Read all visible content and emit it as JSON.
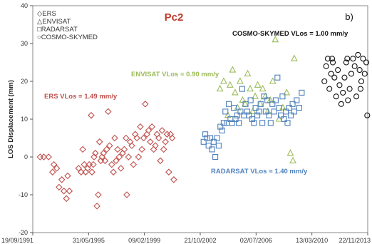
{
  "chart_data": {
    "type": "scatter",
    "title": "Pc2",
    "panel_label": "b)",
    "ylabel": "LOS Displacement (mm)",
    "xlabel": "",
    "ylim": [
      -20,
      40
    ],
    "yticks": [
      -20,
      -10,
      0,
      10,
      20,
      30,
      40
    ],
    "xlim": [
      "1991-09-19",
      "2013-11-22"
    ],
    "xticks": [
      {
        "date": "1991-09-19",
        "label": "19/09/1991"
      },
      {
        "date": "1995-05-31",
        "label": "31/05/1995"
      },
      {
        "date": "1999-02-09",
        "label": "09/02/1999"
      },
      {
        "date": "2002-10-21",
        "label": "21/10/2002"
      },
      {
        "date": "2006-07-02",
        "label": "02/07/2006"
      },
      {
        "date": "2010-03-13",
        "label": "13/03/2010"
      },
      {
        "date": "2013-11-22",
        "label": "22/11/2013"
      }
    ],
    "grid": false,
    "legend_position": "top-left",
    "series": [
      {
        "name": "ERS",
        "marker": "diamond",
        "color": "#c0504d",
        "points": [
          [
            "1992-03-15",
            0
          ],
          [
            "1992-06-10",
            0
          ],
          [
            "1992-10-05",
            0
          ],
          [
            "1993-01-10",
            -4
          ],
          [
            "1993-02-10",
            -2
          ],
          [
            "1993-04-20",
            -3
          ],
          [
            "1993-06-15",
            -8
          ],
          [
            "1993-08-20",
            -6
          ],
          [
            "1993-10-10",
            -9
          ],
          [
            "1993-12-10",
            -11
          ],
          [
            "1994-01-10",
            -5
          ],
          [
            "1994-02-20",
            -9
          ],
          [
            "1994-10-01",
            -3
          ],
          [
            "1994-12-01",
            -4
          ],
          [
            "1995-01-10",
            2
          ],
          [
            "1995-02-15",
            -2
          ],
          [
            "1995-03-20",
            -4
          ],
          [
            "1995-05-10",
            -3
          ],
          [
            "1995-06-15",
            -2
          ],
          [
            "1995-08-01",
            11
          ],
          [
            "1995-08-20",
            -4
          ],
          [
            "1995-09-20",
            -2
          ],
          [
            "1995-10-10",
            0
          ],
          [
            "1995-11-10",
            1
          ],
          [
            "1995-12-20",
            -13
          ],
          [
            "1996-01-20",
            -10
          ],
          [
            "1996-02-20",
            4
          ],
          [
            "1996-03-20",
            -1
          ],
          [
            "1996-04-20",
            0
          ],
          [
            "1996-05-25",
            1
          ],
          [
            "1996-07-01",
            -1
          ],
          [
            "1996-08-10",
            2
          ],
          [
            "1996-09-15",
            12
          ],
          [
            "1996-10-20",
            3
          ],
          [
            "1996-12-10",
            -2
          ],
          [
            "1997-01-20",
            -4
          ],
          [
            "1997-02-20",
            5
          ],
          [
            "1997-03-25",
            -1
          ],
          [
            "1997-05-01",
            2
          ],
          [
            "1997-06-10",
            0
          ],
          [
            "1997-07-20",
            -3
          ],
          [
            "1997-09-01",
            1
          ],
          [
            "1997-10-10",
            2
          ],
          [
            "1997-11-20",
            5
          ],
          [
            "1997-12-10",
            -10
          ],
          [
            "1998-01-20",
            0
          ],
          [
            "1998-03-01",
            4
          ],
          [
            "1998-04-10",
            3
          ],
          [
            "1998-05-20",
            -2
          ],
          [
            "1998-07-01",
            6
          ],
          [
            "1998-08-10",
            5
          ],
          [
            "1998-09-20",
            0
          ],
          [
            "1998-11-01",
            8
          ],
          [
            "1998-12-10",
            2
          ],
          [
            "1999-01-20",
            5
          ],
          [
            "1999-03-01",
            14
          ],
          [
            "1999-04-10",
            6
          ],
          [
            "1999-05-20",
            7
          ],
          [
            "1999-07-01",
            4
          ],
          [
            "1999-08-10",
            8
          ],
          [
            "1999-09-20",
            2
          ],
          [
            "1999-11-01",
            3
          ],
          [
            "1999-12-10",
            6
          ],
          [
            "2000-01-20",
            5
          ],
          [
            "2000-03-01",
            -1
          ],
          [
            "2000-04-10",
            7
          ],
          [
            "2000-05-20",
            2
          ],
          [
            "2000-07-01",
            4
          ],
          [
            "2000-08-10",
            6
          ],
          [
            "2000-09-20",
            -4
          ],
          [
            "2000-11-01",
            6
          ],
          [
            "2000-12-10",
            5
          ],
          [
            "2001-01-20",
            -6
          ]
        ]
      },
      {
        "name": "ENVISAT",
        "marker": "triangle",
        "color": "#9bbb59",
        "points": [
          [
            "2004-02-10",
            18
          ],
          [
            "2004-05-10",
            20
          ],
          [
            "2004-08-20",
            11
          ],
          [
            "2004-10-10",
            19
          ],
          [
            "2004-12-10",
            23
          ],
          [
            "2005-02-10",
            17
          ],
          [
            "2005-04-10",
            13
          ],
          [
            "2005-06-10",
            20
          ],
          [
            "2005-08-10",
            15
          ],
          [
            "2005-10-10",
            14
          ],
          [
            "2005-12-10",
            22
          ],
          [
            "2006-02-10",
            18
          ],
          [
            "2006-04-10",
            12
          ],
          [
            "2006-06-10",
            16
          ],
          [
            "2006-08-10",
            19
          ],
          [
            "2006-10-10",
            14
          ],
          [
            "2006-12-10",
            18
          ],
          [
            "2007-02-10",
            16
          ],
          [
            "2007-04-10",
            12
          ],
          [
            "2007-06-10",
            15
          ],
          [
            "2007-08-10",
            20
          ],
          [
            "2007-10-10",
            31
          ],
          [
            "2008-01-10",
            10
          ],
          [
            "2008-04-10",
            13
          ],
          [
            "2008-07-10",
            17
          ],
          [
            "2008-10-10",
            1
          ],
          [
            "2008-12-10",
            -1
          ],
          [
            "2009-01-10",
            26
          ]
        ]
      },
      {
        "name": "RADARSAT",
        "marker": "square",
        "color": "#4f81bd",
        "points": [
          [
            "2003-01-10",
            4
          ],
          [
            "2003-02-20",
            6
          ],
          [
            "2003-04-01",
            5
          ],
          [
            "2003-05-10",
            3
          ],
          [
            "2003-06-20",
            5
          ],
          [
            "2003-08-01",
            2
          ],
          [
            "2003-09-10",
            4
          ],
          [
            "2003-10-20",
            0
          ],
          [
            "2003-12-01",
            5
          ],
          [
            "2004-01-10",
            3
          ],
          [
            "2004-02-20",
            8
          ],
          [
            "2004-04-01",
            7
          ],
          [
            "2004-05-10",
            9
          ],
          [
            "2004-06-20",
            12
          ],
          [
            "2004-08-01",
            9
          ],
          [
            "2004-09-10",
            14
          ],
          [
            "2004-10-20",
            10
          ],
          [
            "2004-12-01",
            9
          ],
          [
            "2005-01-10",
            13
          ],
          [
            "2005-02-20",
            10
          ],
          [
            "2005-04-01",
            11
          ],
          [
            "2005-05-10",
            9
          ],
          [
            "2005-06-20",
            12
          ],
          [
            "2005-08-01",
            18
          ],
          [
            "2005-09-10",
            11
          ],
          [
            "2005-10-20",
            14
          ],
          [
            "2005-12-01",
            12
          ],
          [
            "2006-01-10",
            11
          ],
          [
            "2006-02-20",
            15
          ],
          [
            "2006-04-01",
            10
          ],
          [
            "2006-05-10",
            9
          ],
          [
            "2006-06-20",
            13
          ],
          [
            "2006-08-01",
            11
          ],
          [
            "2006-09-10",
            12
          ],
          [
            "2006-10-20",
            14
          ],
          [
            "2006-12-01",
            9
          ],
          [
            "2007-01-10",
            16
          ],
          [
            "2007-02-20",
            12
          ],
          [
            "2007-04-01",
            15
          ],
          [
            "2007-05-10",
            11
          ],
          [
            "2007-06-20",
            9
          ],
          [
            "2007-08-01",
            14
          ],
          [
            "2007-09-10",
            12
          ],
          [
            "2007-10-20",
            15
          ],
          [
            "2007-12-01",
            21
          ],
          [
            "2008-01-10",
            13
          ],
          [
            "2008-02-20",
            11
          ],
          [
            "2008-04-01",
            16
          ],
          [
            "2008-05-10",
            10
          ],
          [
            "2008-06-20",
            12
          ],
          [
            "2008-08-01",
            9
          ],
          [
            "2008-09-10",
            13
          ],
          [
            "2008-10-20",
            11
          ],
          [
            "2008-12-01",
            14
          ],
          [
            "2009-01-10",
            12
          ],
          [
            "2009-03-10",
            15
          ],
          [
            "2009-05-10",
            13
          ],
          [
            "2009-07-10",
            17
          ]
        ]
      },
      {
        "name": "COSMO-SKYMED",
        "marker": "circle",
        "color": "#111111",
        "points": [
          [
            "2011-01-10",
            20
          ],
          [
            "2011-02-20",
            24
          ],
          [
            "2011-04-01",
            26
          ],
          [
            "2011-05-10",
            18
          ],
          [
            "2011-06-20",
            22
          ],
          [
            "2011-08-01",
            25
          ],
          [
            "2011-09-10",
            21
          ],
          [
            "2011-10-20",
            16
          ],
          [
            "2011-12-01",
            23
          ],
          [
            "2012-01-10",
            19
          ],
          [
            "2012-02-20",
            14
          ],
          [
            "2012-04-01",
            17
          ],
          [
            "2012-05-10",
            21
          ],
          [
            "2012-06-20",
            25
          ],
          [
            "2012-08-01",
            15
          ],
          [
            "2012-09-10",
            18
          ],
          [
            "2012-10-20",
            22
          ],
          [
            "2012-12-01",
            26
          ],
          [
            "2013-01-10",
            24
          ],
          [
            "2013-02-20",
            16
          ],
          [
            "2013-04-01",
            27
          ],
          [
            "2013-05-10",
            23
          ],
          [
            "2013-06-20",
            20
          ],
          [
            "2013-08-01",
            26
          ],
          [
            "2013-09-10",
            22
          ],
          [
            "2013-10-20",
            25
          ],
          [
            "2013-11-10",
            11
          ],
          [
            "2013-06-01",
            18
          ],
          [
            "2012-07-15",
            26
          ],
          [
            "2011-07-15",
            26
          ]
        ]
      }
    ],
    "legend": [
      {
        "symbol": "◇",
        "label": "ERS"
      },
      {
        "symbol": "△",
        "label": "ENVISAT"
      },
      {
        "symbol": "□",
        "label": "RADARSAT"
      },
      {
        "symbol": "○",
        "label": "COSMO-SKYMED"
      }
    ],
    "annotations": [
      {
        "id": "ers",
        "text": "ERS       VLos = 1.49 mm/y",
        "color": "#c0504d"
      },
      {
        "id": "envisat",
        "text": "ENVISAT   VLos = 0.90 mm/y",
        "color": "#9bbb59"
      },
      {
        "id": "radarsat",
        "text": "RADARSAT   VLos = 1.40 mm/y",
        "color": "#4f81bd"
      },
      {
        "id": "cosmo",
        "text": "COSMO-SKYMED  VLos = 1.00 mm/y",
        "color": "#111111"
      }
    ]
  }
}
